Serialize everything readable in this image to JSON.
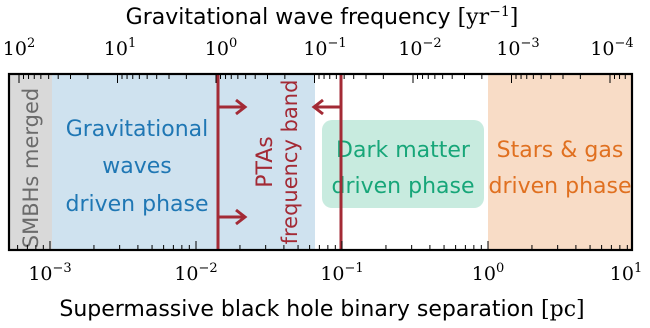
{
  "top_axis": {
    "label_text": "Gravitational wave frequency ",
    "label_unit_base": "yr",
    "label_unit_exp": "−1",
    "ticks": [
      {
        "base": "10",
        "exp": "2"
      },
      {
        "base": "10",
        "exp": "1"
      },
      {
        "base": "10",
        "exp": "0"
      },
      {
        "base": "10",
        "exp": "−1"
      },
      {
        "base": "10",
        "exp": "−2"
      },
      {
        "base": "10",
        "exp": "−3"
      },
      {
        "base": "10",
        "exp": "−4"
      }
    ]
  },
  "bottom_axis": {
    "label_text": "Supermassive black hole binary separation ",
    "label_unit": "pc",
    "ticks": [
      {
        "base": "10",
        "exp": "−3"
      },
      {
        "base": "10",
        "exp": "−2"
      },
      {
        "base": "10",
        "exp": "−1"
      },
      {
        "base": "10",
        "exp": "0"
      },
      {
        "base": "10",
        "exp": "1"
      }
    ]
  },
  "regions": {
    "merged": {
      "label": "SMBHs merged",
      "color": "#d9d9d9"
    },
    "gw": {
      "line1": "Gravitational",
      "line2": "waves",
      "line3": "driven phase",
      "color": "#1f77b4",
      "fill": "#cfe2ef"
    },
    "dm": {
      "line1": "Dark matter",
      "line2": "driven phase",
      "color": "#17a679",
      "fill": "#c8ebdf"
    },
    "stars": {
      "line1": "Stars & gas",
      "line2": "driven phase",
      "color": "#e07020",
      "fill": "#f8dcc6"
    }
  },
  "pta": {
    "line1": "PTAs",
    "line2": "frequency band",
    "color": "#a32a35"
  }
}
